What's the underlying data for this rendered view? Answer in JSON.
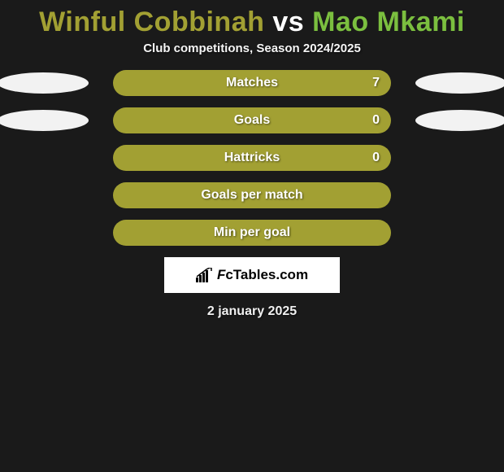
{
  "title": {
    "player1": "Winful Cobbinah",
    "vs": "vs",
    "player2": "Mao Mkami",
    "color_player1": "#a2a033",
    "color_vs": "#ffffff",
    "color_player2": "#7bbf3f"
  },
  "subtitle": "Club competitions, Season 2024/2025",
  "background_color": "#1a1a1a",
  "oval_color": "#f2f2f2",
  "stats": [
    {
      "label": "Matches",
      "value": "7",
      "bar_color": "#a2a033",
      "show_ovals": true,
      "show_value": true
    },
    {
      "label": "Goals",
      "value": "0",
      "bar_color": "#a2a033",
      "show_ovals": true,
      "show_value": true
    },
    {
      "label": "Hattricks",
      "value": "0",
      "bar_color": "#a2a033",
      "show_ovals": false,
      "show_value": true
    },
    {
      "label": "Goals per match",
      "value": "",
      "bar_color": "#a2a033",
      "show_ovals": false,
      "show_value": false
    },
    {
      "label": "Min per goal",
      "value": "",
      "bar_color": "#a2a033",
      "show_ovals": false,
      "show_value": false
    }
  ],
  "logo_text": "FcTables.com",
  "date": "2 january 2025"
}
